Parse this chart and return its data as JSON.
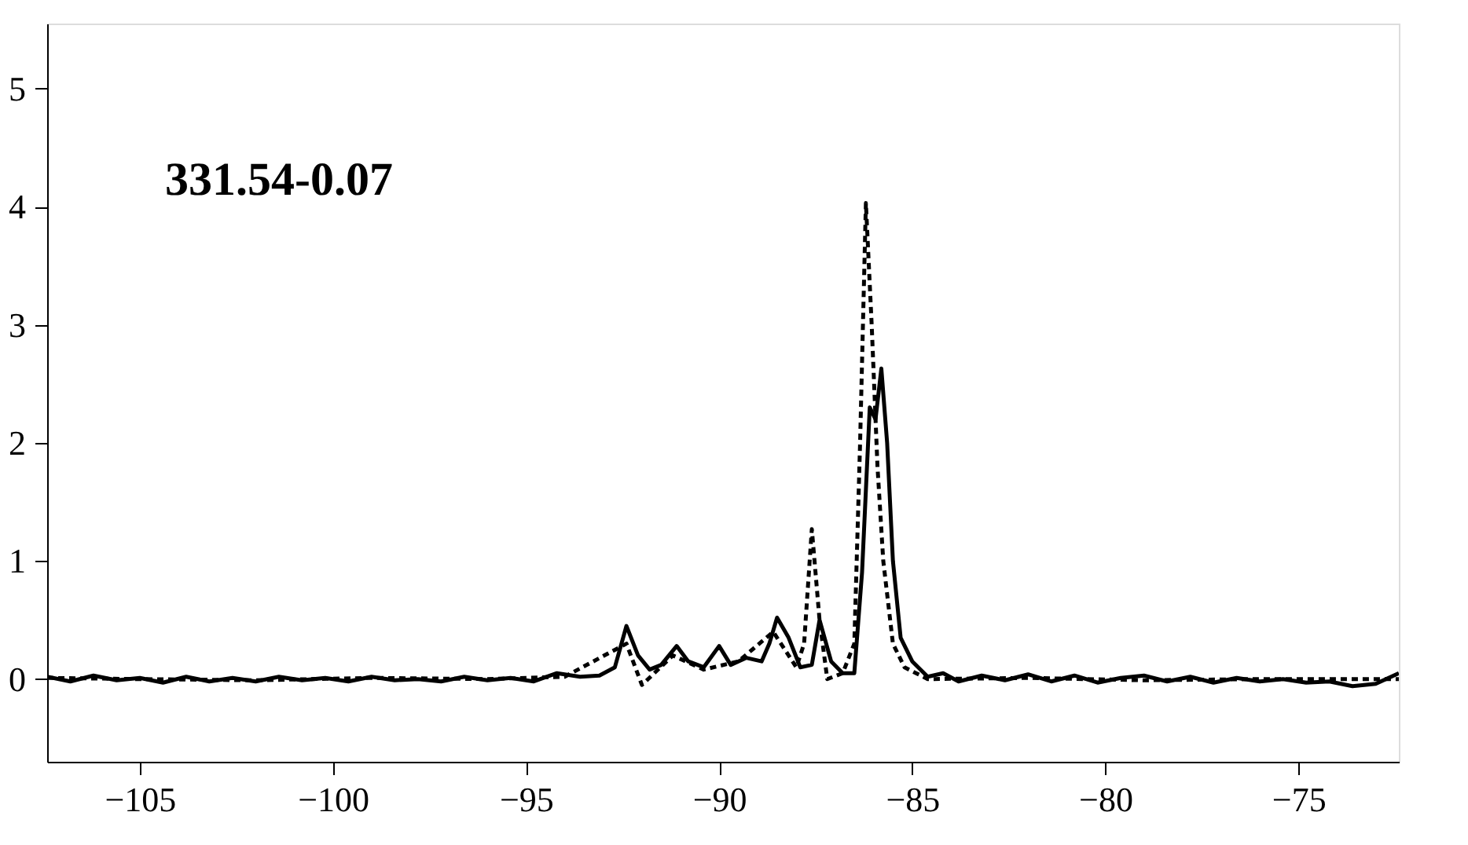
{
  "chart_data": {
    "type": "line",
    "annotations": [
      "331.54-0.07"
    ],
    "xlim": [
      -107.4,
      -72.4
    ],
    "xticks": [
      -105,
      -100,
      -95,
      -90,
      -85,
      -80,
      -75
    ],
    "ylim": [
      -0.7,
      5.55
    ],
    "yticks": [
      0,
      1,
      2,
      3,
      4,
      5
    ],
    "grid": false,
    "marker": "none",
    "series": [
      {
        "color": "#000000",
        "line_style": "solid",
        "x": [
          -107.4,
          -106.8,
          -106.2,
          -105.6,
          -105.0,
          -104.4,
          -103.8,
          -103.2,
          -102.6,
          -102.0,
          -101.4,
          -100.8,
          -100.2,
          -99.6,
          -99.0,
          -98.4,
          -97.8,
          -97.2,
          -96.6,
          -96.0,
          -95.4,
          -94.8,
          -94.2,
          -93.6,
          -93.1,
          -92.7,
          -92.4,
          -92.1,
          -91.8,
          -91.5,
          -91.1,
          -90.8,
          -90.4,
          -90.0,
          -89.7,
          -89.3,
          -88.9,
          -88.7,
          -88.5,
          -88.2,
          -87.9,
          -87.6,
          -87.4,
          -87.1,
          -86.8,
          -86.5,
          -86.3,
          -86.1,
          -85.95,
          -85.8,
          -85.65,
          -85.5,
          -85.3,
          -85.0,
          -84.6,
          -84.2,
          -83.8,
          -83.2,
          -82.6,
          -82.0,
          -81.4,
          -80.8,
          -80.2,
          -79.6,
          -79.0,
          -78.4,
          -77.8,
          -77.2,
          -76.6,
          -76.0,
          -75.4,
          -74.8,
          -74.2,
          -73.6,
          -73.0,
          -72.4
        ],
        "values": [
          0.02,
          -0.02,
          0.03,
          -0.01,
          0.01,
          -0.03,
          0.02,
          -0.02,
          0.01,
          -0.02,
          0.02,
          -0.01,
          0.01,
          -0.02,
          0.02,
          -0.01,
          0.0,
          -0.02,
          0.02,
          -0.01,
          0.01,
          -0.02,
          0.05,
          0.02,
          0.03,
          0.1,
          0.45,
          0.2,
          0.08,
          0.12,
          0.28,
          0.15,
          0.1,
          0.28,
          0.12,
          0.18,
          0.15,
          0.3,
          0.52,
          0.35,
          0.1,
          0.12,
          0.5,
          0.15,
          0.05,
          0.05,
          0.9,
          2.3,
          2.2,
          2.63,
          2.0,
          1.0,
          0.35,
          0.15,
          0.02,
          0.05,
          -0.02,
          0.03,
          -0.01,
          0.04,
          -0.02,
          0.03,
          -0.03,
          0.01,
          0.03,
          -0.02,
          0.02,
          -0.03,
          0.01,
          -0.02,
          0.0,
          -0.03,
          -0.02,
          -0.06,
          -0.04,
          0.05
        ]
      },
      {
        "color": "#000000",
        "line_style": "dashed",
        "x": [
          -107.4,
          -105,
          -102,
          -99,
          -96,
          -94,
          -92.4,
          -92.0,
          -91.2,
          -90.4,
          -89.5,
          -88.6,
          -88.0,
          -87.8,
          -87.6,
          -87.4,
          -87.2,
          -86.8,
          -86.5,
          -86.35,
          -86.2,
          -86.05,
          -85.9,
          -85.75,
          -85.5,
          -85.2,
          -84.6,
          -82,
          -79,
          -76,
          -72.4
        ],
        "values": [
          0.01,
          0.0,
          -0.01,
          0.01,
          0.0,
          0.02,
          0.3,
          -0.05,
          0.2,
          0.08,
          0.15,
          0.4,
          0.1,
          0.3,
          1.27,
          0.5,
          0.0,
          0.05,
          0.3,
          2.0,
          4.03,
          3.0,
          1.8,
          1.0,
          0.3,
          0.1,
          0.0,
          0.01,
          -0.01,
          0.0,
          0.0
        ]
      }
    ]
  }
}
